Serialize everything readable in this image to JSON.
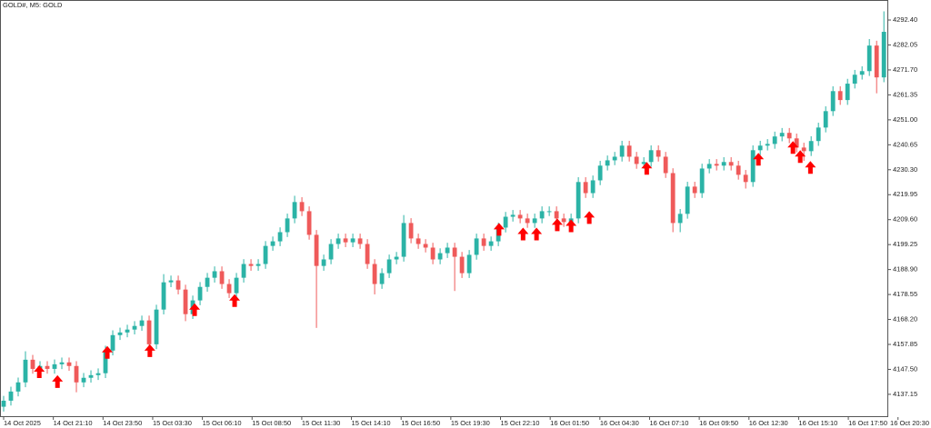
{
  "chart_data": {
    "type": "candlestick",
    "title": "GOLD#, M5:  GOLD",
    "up_color": "#2bb3a6",
    "down_color": "#ef5a5a",
    "open": [
      4132.0,
      4134.5,
      4138.3,
      4142.1,
      4151.5,
      4147.7,
      4148.9,
      4147.7,
      4149.6,
      4150.4,
      4148.9,
      4142.1,
      4144.0,
      4145.1,
      4145.9,
      4155.3,
      4161.7,
      4162.8,
      4164.0,
      4165.5,
      4167.8,
      4157.9,
      4172.3,
      4183.6,
      4184.4,
      4180.6,
      4170.4,
      4176.1,
      4181.7,
      4185.5,
      4188.2,
      4182.9,
      4179.1,
      4185.5,
      4191.2,
      4190.4,
      4191.2,
      4198.7,
      4200.6,
      4204.4,
      4210.1,
      4216.9,
      4213.1,
      4203.3,
      4190.4,
      4193.1,
      4199.5,
      4201.8,
      4200.2,
      4201.8,
      4199.5,
      4191.2,
      4182.9,
      4187.4,
      4193.1,
      4194.2,
      4208.2,
      4201.8,
      4199.5,
      4198.0,
      4193.1,
      4195.7,
      4198.0,
      4194.2,
      4187.4,
      4195.0,
      4201.8,
      4198.7,
      4200.6,
      4206.3,
      4210.8,
      4211.6,
      4210.1,
      4208.2,
      4210.1,
      4213.1,
      4213.1,
      4210.1,
      4208.6,
      4210.1,
      4225.2,
      4220.6,
      4225.9,
      4232.0,
      4234.2,
      4235.7,
      4240.3,
      4235.7,
      4232.7,
      4233.5,
      4238.4,
      4235.7,
      4228.9,
      4208.2,
      4212.0,
      4223.3,
      4220.6,
      4230.8,
      4232.7,
      4232.0,
      4233.5,
      4232.0,
      4228.2,
      4225.2,
      4238.4,
      4240.3,
      4241.0,
      4244.1,
      4245.6,
      4243.3,
      4239.5,
      4238.0,
      4242.2,
      4247.8,
      4254.6,
      4262.9,
      4259.2,
      4266.0,
      4269.7,
      4271.2,
      4281.8,
      4268.6
    ],
    "high": [
      4136.5,
      4140.3,
      4144.1,
      4155.0,
      4153.5,
      4150.9,
      4150.9,
      4151.6,
      4152.4,
      4152.4,
      4150.9,
      4146.0,
      4147.1,
      4147.9,
      4157.3,
      4163.7,
      4164.8,
      4166.0,
      4167.5,
      4169.8,
      4169.8,
      4174.3,
      4187.0,
      4186.4,
      4186.4,
      4182.6,
      4178.1,
      4183.7,
      4187.5,
      4190.2,
      4190.2,
      4184.9,
      4187.5,
      4193.2,
      4193.2,
      4193.2,
      4200.7,
      4202.6,
      4206.4,
      4212.1,
      4219.5,
      4218.9,
      4215.1,
      4205.3,
      4195.1,
      4201.5,
      4203.8,
      4203.8,
      4203.8,
      4203.8,
      4201.5,
      4193.2,
      4189.4,
      4195.1,
      4196.2,
      4211.5,
      4210.2,
      4203.8,
      4201.5,
      4200.0,
      4197.7,
      4200.0,
      4200.0,
      4196.2,
      4197.0,
      4203.8,
      4203.8,
      4202.6,
      4208.3,
      4212.8,
      4213.6,
      4213.6,
      4212.1,
      4212.1,
      4215.1,
      4215.1,
      4215.1,
      4212.1,
      4212.1,
      4227.2,
      4227.2,
      4227.9,
      4234.0,
      4236.2,
      4237.7,
      4242.3,
      4242.3,
      4237.7,
      4235.5,
      4240.4,
      4240.4,
      4237.7,
      4230.9,
      4214.0,
      4225.3,
      4225.3,
      4232.8,
      4234.7,
      4234.7,
      4235.5,
      4235.5,
      4234.0,
      4230.2,
      4240.4,
      4242.3,
      4243.0,
      4246.1,
      4247.6,
      4247.6,
      4245.3,
      4241.5,
      4244.2,
      4249.8,
      4256.6,
      4264.9,
      4264.9,
      4268.0,
      4271.7,
      4273.2,
      4284.5,
      4283.8,
      4296.0
    ],
    "low": [
      4130.0,
      4132.5,
      4136.3,
      4140.1,
      4145.7,
      4145.7,
      4145.7,
      4145.7,
      4147.6,
      4146.9,
      4138.0,
      4140.1,
      4142.0,
      4143.1,
      4143.9,
      4153.3,
      4159.7,
      4160.8,
      4162.0,
      4163.5,
      4155.9,
      4155.9,
      4170.3,
      4181.6,
      4178.6,
      4167.5,
      4168.4,
      4174.1,
      4179.7,
      4183.5,
      4180.9,
      4177.1,
      4177.1,
      4183.5,
      4188.4,
      4188.4,
      4189.2,
      4196.7,
      4198.6,
      4202.4,
      4208.1,
      4211.1,
      4201.3,
      4164.7,
      4188.4,
      4191.1,
      4197.5,
      4198.2,
      4198.2,
      4197.5,
      4189.2,
      4178.6,
      4180.9,
      4185.4,
      4191.1,
      4192.2,
      4199.8,
      4197.5,
      4196.0,
      4191.1,
      4191.1,
      4193.7,
      4180.0,
      4185.4,
      4185.4,
      4193.0,
      4196.7,
      4196.7,
      4198.6,
      4204.3,
      4208.8,
      4208.1,
      4206.2,
      4206.2,
      4208.1,
      4211.1,
      4208.1,
      4206.6,
      4206.6,
      4208.1,
      4218.6,
      4218.6,
      4223.9,
      4230.0,
      4232.2,
      4233.7,
      4233.7,
      4230.7,
      4230.7,
      4231.5,
      4233.7,
      4226.9,
      4204.4,
      4204.4,
      4210.0,
      4218.6,
      4218.6,
      4228.8,
      4230.0,
      4230.0,
      4230.0,
      4226.2,
      4222.5,
      4223.2,
      4236.4,
      4238.3,
      4239.0,
      4242.1,
      4241.3,
      4237.5,
      4234.0,
      4236.0,
      4240.2,
      4245.8,
      4252.6,
      4257.2,
      4257.2,
      4264.0,
      4267.7,
      4269.2,
      4262.0,
      4266.6
    ],
    "close": [
      4134.5,
      4138.3,
      4142.1,
      4151.5,
      4147.7,
      4148.9,
      4147.7,
      4149.6,
      4150.4,
      4148.9,
      4142.1,
      4144.0,
      4145.1,
      4145.9,
      4155.3,
      4161.7,
      4162.8,
      4164.0,
      4165.5,
      4167.8,
      4157.9,
      4172.3,
      4183.6,
      4184.4,
      4180.6,
      4170.4,
      4176.1,
      4181.7,
      4185.5,
      4188.2,
      4182.9,
      4179.1,
      4185.5,
      4191.2,
      4190.4,
      4191.2,
      4198.7,
      4200.6,
      4204.4,
      4210.1,
      4216.9,
      4213.1,
      4203.3,
      4190.4,
      4193.1,
      4199.5,
      4201.8,
      4200.2,
      4201.8,
      4199.5,
      4191.2,
      4182.9,
      4187.4,
      4193.1,
      4194.2,
      4208.2,
      4201.8,
      4199.5,
      4198.0,
      4193.1,
      4195.7,
      4198.0,
      4194.2,
      4187.4,
      4195.0,
      4201.8,
      4198.7,
      4200.6,
      4206.3,
      4210.8,
      4211.6,
      4210.1,
      4208.2,
      4210.1,
      4213.1,
      4213.1,
      4210.1,
      4208.6,
      4210.1,
      4225.2,
      4220.6,
      4225.9,
      4232.0,
      4234.2,
      4235.7,
      4240.3,
      4235.7,
      4232.7,
      4233.5,
      4238.4,
      4235.7,
      4228.9,
      4208.2,
      4212.0,
      4223.3,
      4220.6,
      4230.8,
      4232.7,
      4232.0,
      4233.5,
      4232.0,
      4228.2,
      4225.2,
      4238.4,
      4240.3,
      4241.0,
      4244.1,
      4245.6,
      4243.3,
      4239.5,
      4238.0,
      4242.2,
      4247.8,
      4254.6,
      4262.9,
      4259.2,
      4266.0,
      4269.7,
      4271.2,
      4281.8,
      4268.6,
      4287.5
    ],
    "signals": {
      "color": "#ff0000",
      "x": [
        4.9,
        7.4,
        14.25,
        20.1,
        26.25,
        31.75,
        68.1,
        71.4,
        73.25,
        76.1,
        78,
        80.5,
        88.4,
        103.75,
        108.5,
        109.5,
        110.9
      ],
      "y": [
        4149.2,
        4145.1,
        4157.2,
        4157.9,
        4174.9,
        4178.7,
        4208.2,
        4206.3,
        4206.3,
        4210.1,
        4209.7,
        4213.1,
        4233.5,
        4237.3,
        4242.2,
        4238.4,
        4233.9
      ]
    },
    "xlim": [
      -0.5,
      121.6
    ],
    "xticks": [
      {
        "value": 0,
        "label": "14 Oct 2025"
      },
      {
        "value": 6.83,
        "label": "14 Oct 21:10"
      },
      {
        "value": 13.66,
        "label": "14 Oct 23:50"
      },
      {
        "value": 20.49,
        "label": "15 Oct 03:30"
      },
      {
        "value": 27.32,
        "label": "15 Oct 06:10"
      },
      {
        "value": 34.15,
        "label": "15 Oct 08:50"
      },
      {
        "value": 40.98,
        "label": "15 Oct 11:30"
      },
      {
        "value": 47.81,
        "label": "15 Oct 14:10"
      },
      {
        "value": 54.64,
        "label": "15 Oct 16:50"
      },
      {
        "value": 61.47,
        "label": "15 Oct 19:30"
      },
      {
        "value": 68.3,
        "label": "15 Oct 22:10"
      },
      {
        "value": 75.13,
        "label": "16 Oct 01:50"
      },
      {
        "value": 81.96,
        "label": "16 Oct 04:30"
      },
      {
        "value": 88.79,
        "label": "16 Oct 07:10"
      },
      {
        "value": 95.62,
        "label": "16 Oct 09:50"
      },
      {
        "value": 102.45,
        "label": "16 Oct 12:30"
      },
      {
        "value": 109.28,
        "label": "16 Oct 15:10"
      },
      {
        "value": 116.11,
        "label": "16 Oct 17:50"
      },
      {
        "value": 122.94,
        "label": "16 Oct 20:30"
      }
    ],
    "ylim": [
      4127.7,
      4300.7
    ],
    "yticks": [
      {
        "value": 4292.4,
        "label": "4292.40"
      },
      {
        "value": 4282.05,
        "label": "4282.05"
      },
      {
        "value": 4271.7,
        "label": "4271.70"
      },
      {
        "value": 4261.35,
        "label": "4261.35"
      },
      {
        "value": 4251.0,
        "label": "4251.00"
      },
      {
        "value": 4240.65,
        "label": "4240.65"
      },
      {
        "value": 4230.3,
        "label": "4230.30"
      },
      {
        "value": 4219.95,
        "label": "4219.95"
      },
      {
        "value": 4209.6,
        "label": "4209.60"
      },
      {
        "value": 4199.25,
        "label": "4199.25"
      },
      {
        "value": 4188.9,
        "label": "4188.90"
      },
      {
        "value": 4178.55,
        "label": "4178.55"
      },
      {
        "value": 4168.2,
        "label": "4168.20"
      },
      {
        "value": 4157.85,
        "label": "4157.85"
      },
      {
        "value": 4147.5,
        "label": "4147.50"
      },
      {
        "value": 4137.15,
        "label": "4137.15"
      }
    ]
  }
}
